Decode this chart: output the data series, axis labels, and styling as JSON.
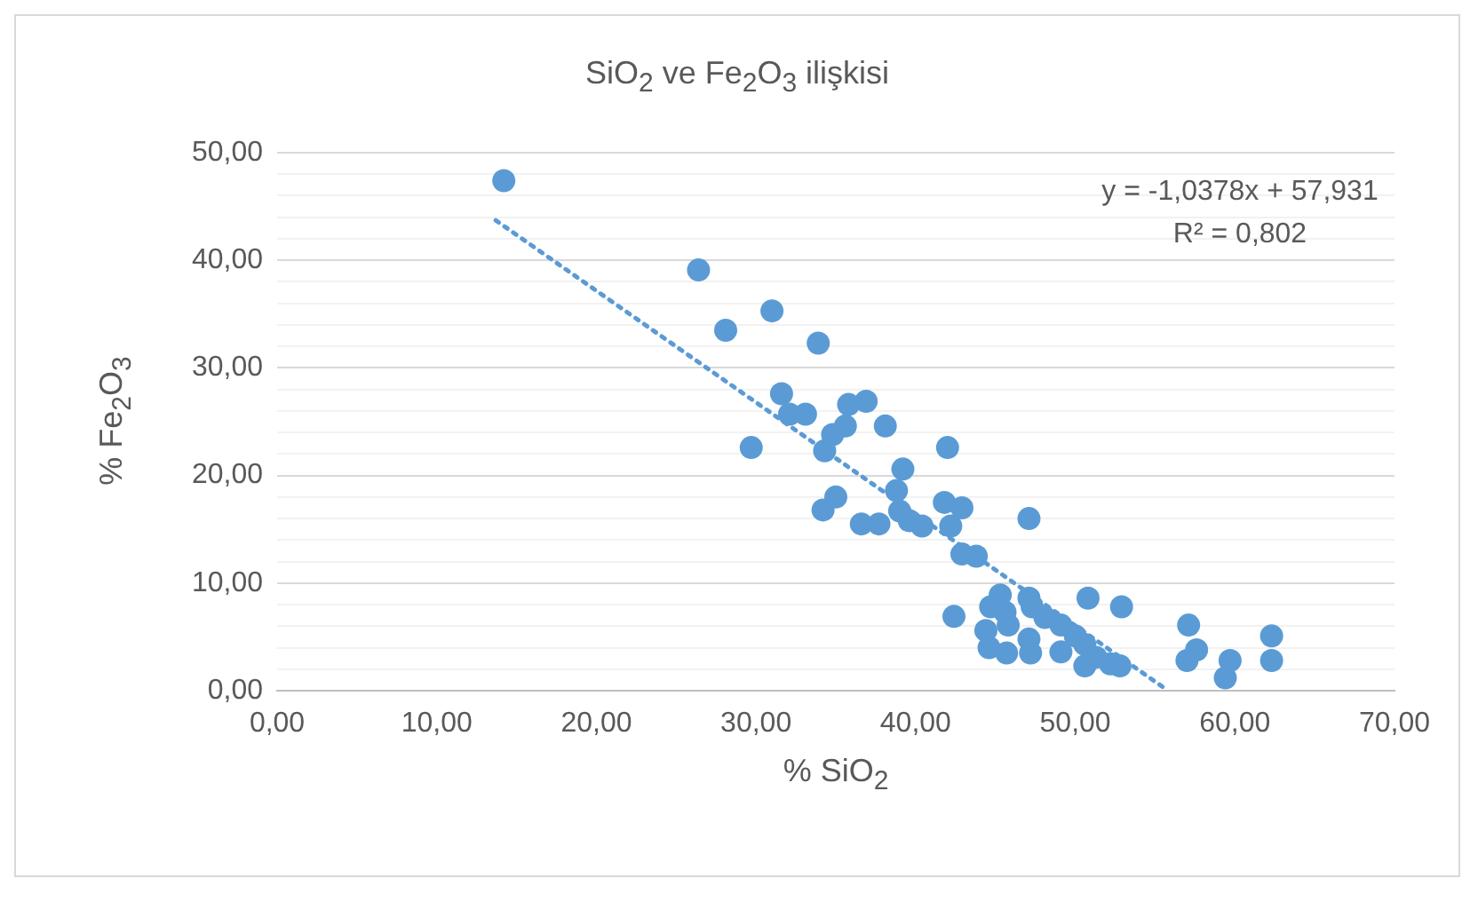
{
  "chart_data": {
    "type": "scatter",
    "title": "SiO$_{2}$ ve Fe$_{2}$O$_{3}$ ilişkisi",
    "xlabel": "% SiO$_{2}$",
    "ylabel": "% Fe$_{2}$O$_{3}$",
    "xlim": [
      0,
      70
    ],
    "ylim": [
      0,
      50
    ],
    "xticks": [
      {
        "value": 0,
        "label": "0,00"
      },
      {
        "value": 10,
        "label": "10,00"
      },
      {
        "value": 20,
        "label": "20,00"
      },
      {
        "value": 30,
        "label": "30,00"
      },
      {
        "value": 40,
        "label": "40,00"
      },
      {
        "value": 50,
        "label": "50,00"
      },
      {
        "value": 60,
        "label": "60,00"
      },
      {
        "value": 70,
        "label": "70,00"
      }
    ],
    "yticks": [
      {
        "value": 0,
        "label": "0,00"
      },
      {
        "value": 2,
        "label": null
      },
      {
        "value": 4,
        "label": null
      },
      {
        "value": 6,
        "label": null
      },
      {
        "value": 8,
        "label": null
      },
      {
        "value": 10,
        "label": "10,00"
      },
      {
        "value": 12,
        "label": null
      },
      {
        "value": 14,
        "label": null
      },
      {
        "value": 16,
        "label": null
      },
      {
        "value": 18,
        "label": null
      },
      {
        "value": 20,
        "label": "20,00"
      },
      {
        "value": 22,
        "label": null
      },
      {
        "value": 24,
        "label": null
      },
      {
        "value": 26,
        "label": null
      },
      {
        "value": 28,
        "label": null
      },
      {
        "value": 30,
        "label": "30,00"
      },
      {
        "value": 32,
        "label": null
      },
      {
        "value": 34,
        "label": null
      },
      {
        "value": 36,
        "label": null
      },
      {
        "value": 38,
        "label": null
      },
      {
        "value": 40,
        "label": "40,00"
      },
      {
        "value": 42,
        "label": null
      },
      {
        "value": 44,
        "label": null
      },
      {
        "value": 46,
        "label": null
      },
      {
        "value": 48,
        "label": null
      },
      {
        "value": 50,
        "label": "50,00"
      }
    ],
    "grid": "y",
    "legend": false,
    "marker": "circle",
    "annotations": [
      "y = -1,0378x + 57,931",
      "R² = 0,802"
    ],
    "series": [
      {
        "color": "#5b9bd5",
        "x": [
          14.2,
          26.4,
          28.1,
          31.0,
          33.9,
          29.7,
          31.6,
          32.1,
          33.1,
          35.8,
          36.9,
          35.6,
          34.8,
          34.3,
          38.1,
          42.0,
          39.2,
          34.2,
          35.0,
          36.6,
          37.7,
          38.8,
          39.0,
          39.6,
          40.4,
          41.8,
          42.9,
          42.2,
          47.1,
          42.9,
          43.8,
          42.4,
          44.7,
          45.3,
          45.6,
          44.4,
          45.8,
          45.7,
          47.1,
          47.3,
          48.1,
          49.1,
          47.1,
          47.2,
          49.1,
          50.0,
          50.6,
          50.8,
          50.6,
          51.3,
          52.2,
          52.8,
          52.9,
          57.1,
          57.6,
          57.0,
          59.7,
          59.4,
          62.3,
          62.3,
          44.6
        ],
        "values": [
          47.4,
          39.1,
          33.5,
          35.3,
          32.3,
          22.6,
          27.6,
          25.7,
          25.7,
          26.6,
          26.9,
          24.6,
          23.8,
          22.3,
          24.6,
          22.6,
          20.6,
          16.8,
          18.0,
          15.5,
          15.5,
          18.6,
          16.7,
          15.8,
          15.3,
          17.5,
          17.0,
          15.3,
          16.0,
          12.7,
          12.5,
          6.9,
          7.8,
          8.9,
          7.3,
          5.6,
          6.1,
          3.5,
          8.6,
          7.8,
          6.8,
          6.1,
          4.8,
          3.5,
          3.6,
          5.1,
          4.3,
          8.6,
          2.3,
          3.1,
          2.5,
          2.3,
          7.8,
          6.1,
          3.8,
          2.8,
          2.8,
          1.2,
          5.1,
          2.8,
          4.0
        ]
      },
      {
        "type": "line",
        "color": "#5b9bd5",
        "marker": "none",
        "line_style": "dotted",
        "x": [
          13.7,
          55.8
        ],
        "values": [
          43.71,
          0.02
        ]
      }
    ]
  }
}
